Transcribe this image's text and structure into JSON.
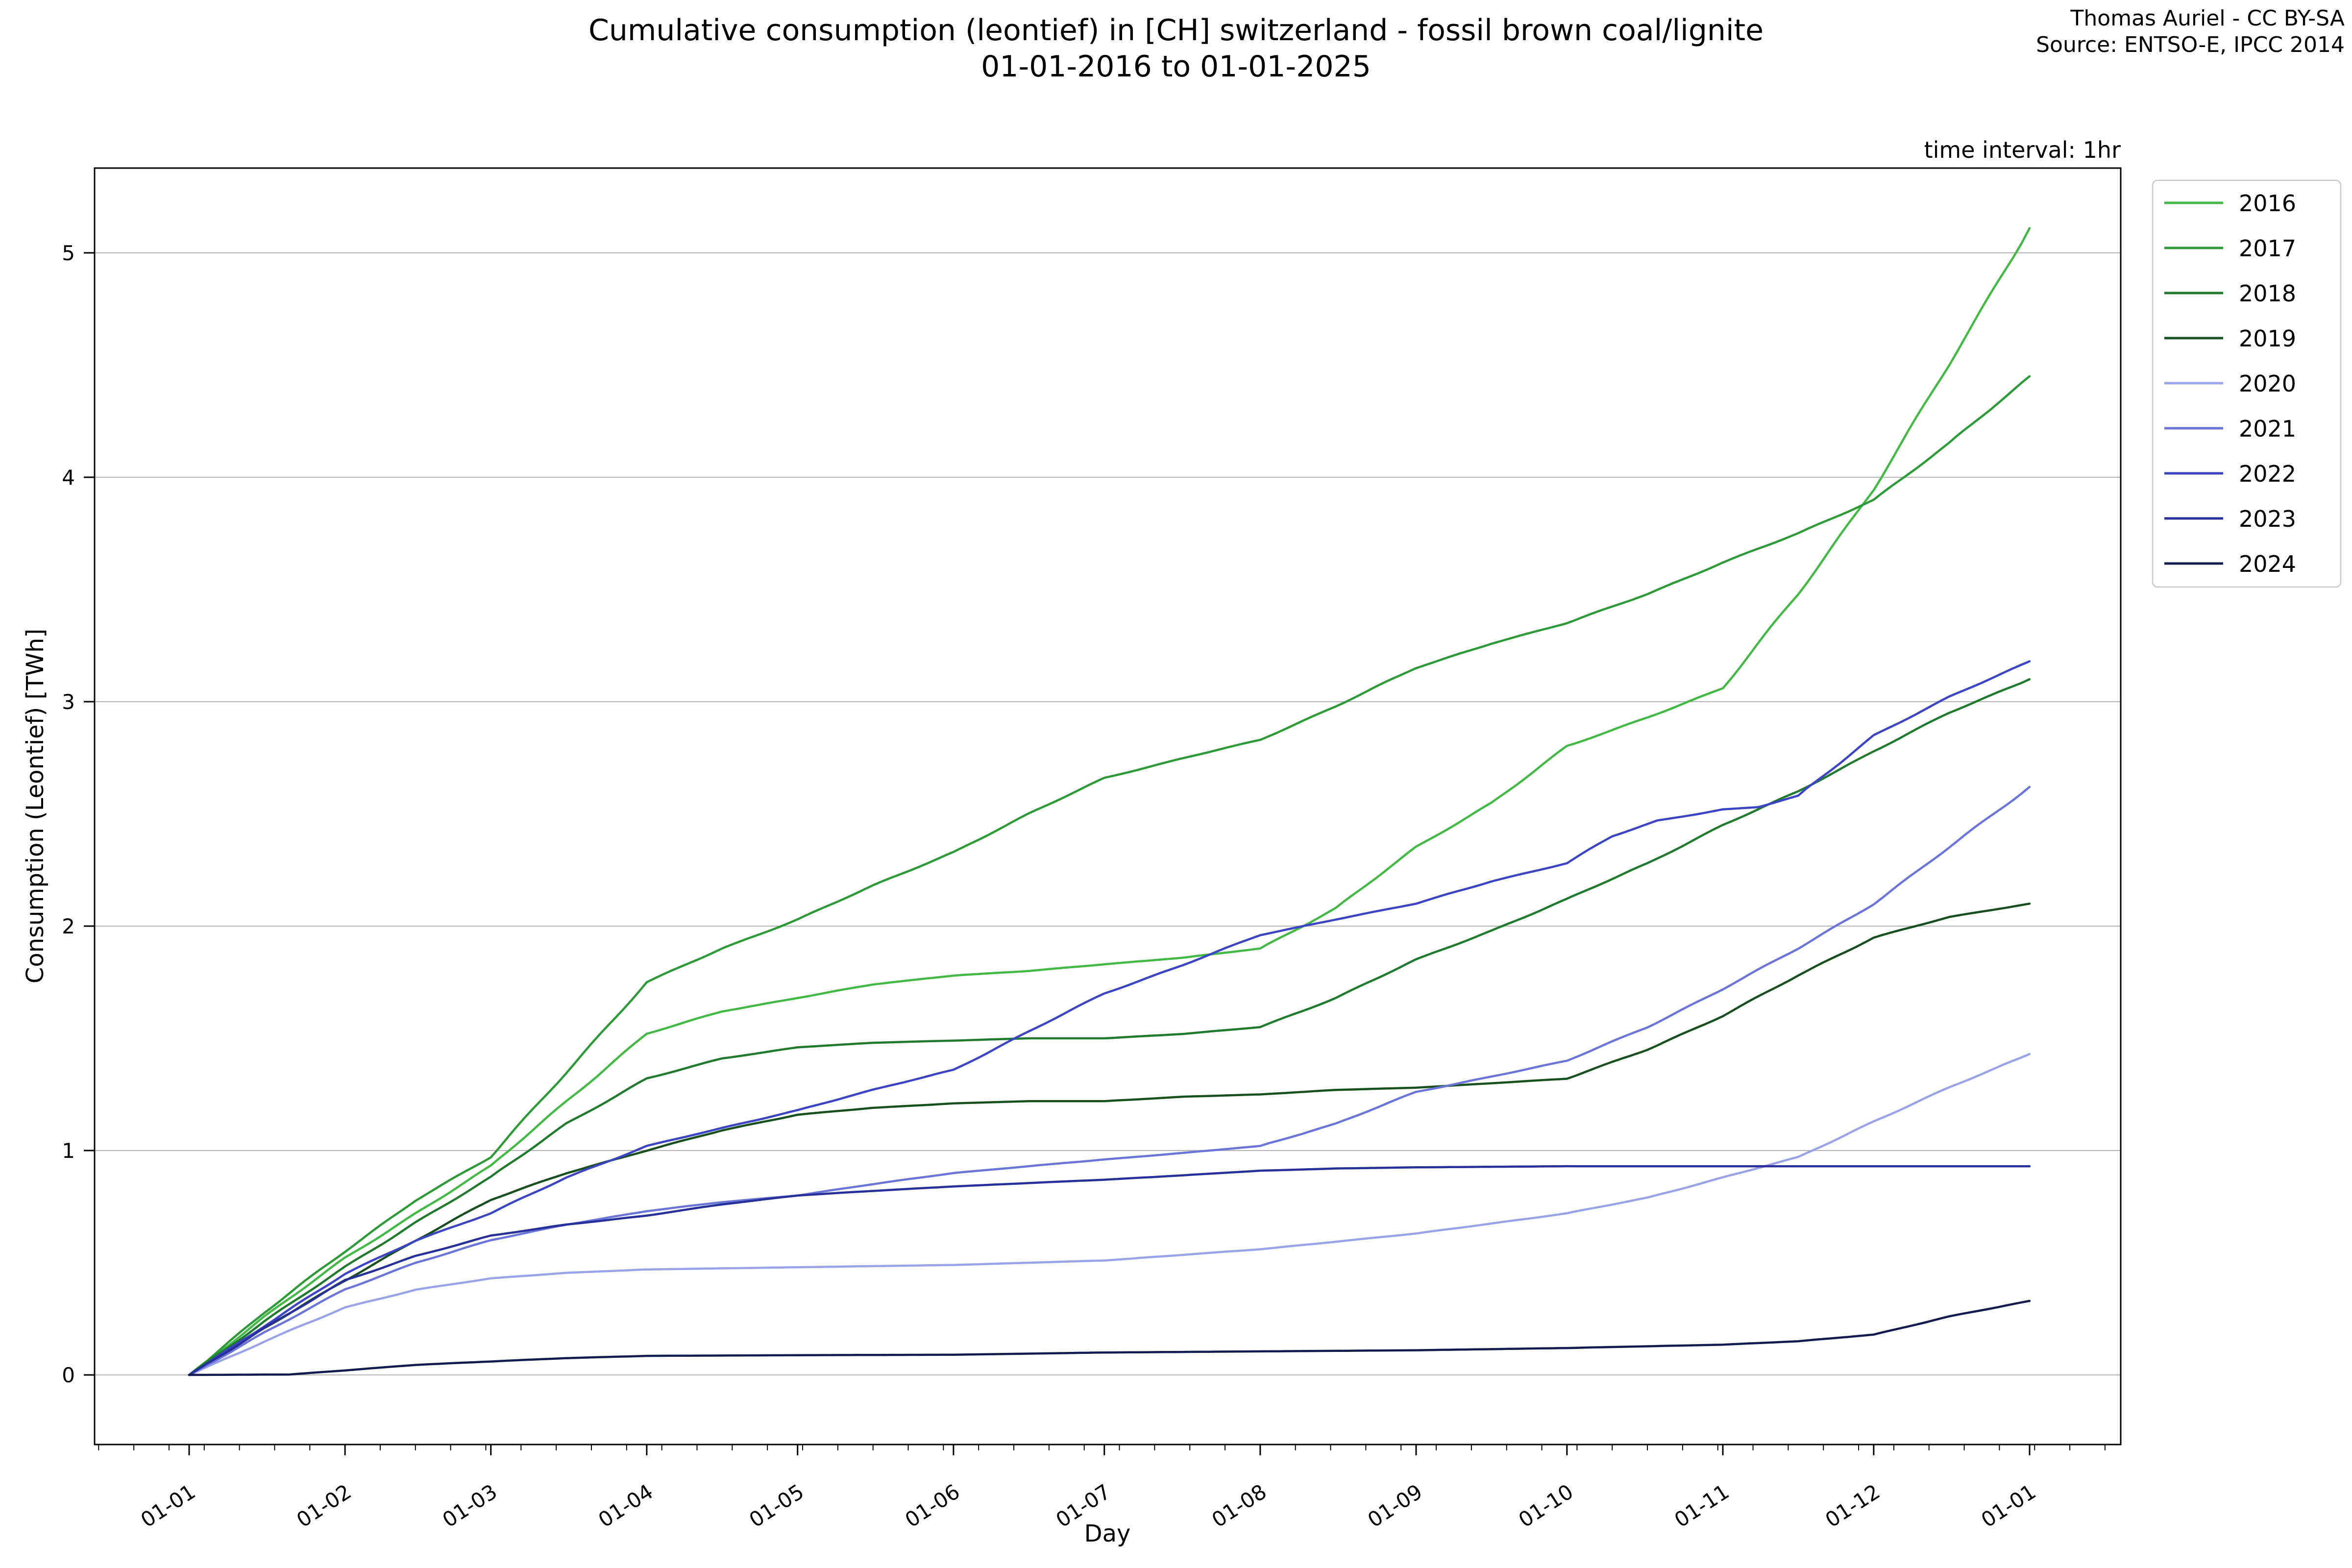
{
  "header": {
    "title_line1": "Cumulative consumption (leontief) in [CH] switzerland - fossil brown coal/lignite",
    "title_line2": "01-01-2016 to 01-01-2025",
    "attribution_line1": "Thomas Auriel - CC BY-SA",
    "attribution_line2": "Source: ENTSO-E, IPCC 2014",
    "note": "time interval: 1hr"
  },
  "chart_data": {
    "type": "line",
    "title": "Cumulative consumption (leontief) in [CH] switzerland - fossil brown coal/lignite 01-01-2016 to 01-01-2025",
    "xlabel": "Day",
    "ylabel": "Consumption (Leontief) [TWh]",
    "grid": "horizontal-only",
    "legend_position": "outside-upper-right",
    "x_axis": {
      "unit": "day of year (dd-mm labels)",
      "tick_labels": [
        "01-01",
        "01-02",
        "01-03",
        "01-04",
        "01-05",
        "01-06",
        "01-07",
        "01-08",
        "01-09",
        "01-10",
        "01-11",
        "01-12",
        "01-01"
      ],
      "tick_days": [
        0,
        31,
        60,
        91,
        121,
        152,
        182,
        213,
        244,
        274,
        305,
        335,
        366
      ],
      "minor_tick_interval_days": 7,
      "tick_label_rotation_deg": -33
    },
    "y_axis": {
      "tick_labels": [
        "0",
        "1",
        "2",
        "3",
        "4",
        "5"
      ],
      "tick_values": [
        0,
        1,
        2,
        3,
        4,
        5
      ],
      "ylim": [
        -0.31,
        5.38
      ]
    },
    "series": [
      {
        "name": "2016",
        "color": "#41b944",
        "end_value": 5.11,
        "points": [
          [
            0,
            0
          ],
          [
            15,
            0.26
          ],
          [
            31,
            0.52
          ],
          [
            45,
            0.72
          ],
          [
            60,
            0.93
          ],
          [
            75,
            1.22
          ],
          [
            91,
            1.52
          ],
          [
            106,
            1.62
          ],
          [
            121,
            1.68
          ],
          [
            136,
            1.74
          ],
          [
            152,
            1.78
          ],
          [
            167,
            1.8
          ],
          [
            182,
            1.83
          ],
          [
            198,
            1.86
          ],
          [
            213,
            1.9
          ],
          [
            228,
            2.08
          ],
          [
            244,
            2.35
          ],
          [
            259,
            2.55
          ],
          [
            274,
            2.8
          ],
          [
            290,
            2.93
          ],
          [
            305,
            3.06
          ],
          [
            320,
            3.48
          ],
          [
            335,
            3.95
          ],
          [
            350,
            4.5
          ],
          [
            366,
            5.11
          ]
        ]
      },
      {
        "name": "2017",
        "color": "#2c9a37",
        "end_value": 4.45,
        "points": [
          [
            0,
            0
          ],
          [
            15,
            0.28
          ],
          [
            31,
            0.55
          ],
          [
            45,
            0.78
          ],
          [
            60,
            0.97
          ],
          [
            75,
            1.35
          ],
          [
            91,
            1.75
          ],
          [
            106,
            1.9
          ],
          [
            121,
            2.03
          ],
          [
            136,
            2.18
          ],
          [
            152,
            2.33
          ],
          [
            167,
            2.5
          ],
          [
            182,
            2.66
          ],
          [
            198,
            2.75
          ],
          [
            213,
            2.83
          ],
          [
            228,
            2.98
          ],
          [
            244,
            3.15
          ],
          [
            259,
            3.26
          ],
          [
            274,
            3.35
          ],
          [
            290,
            3.48
          ],
          [
            305,
            3.62
          ],
          [
            320,
            3.75
          ],
          [
            335,
            3.9
          ],
          [
            350,
            4.15
          ],
          [
            366,
            4.45
          ]
        ]
      },
      {
        "name": "2018",
        "color": "#1f7a2d",
        "end_value": 3.1,
        "points": [
          [
            0,
            0
          ],
          [
            15,
            0.24
          ],
          [
            31,
            0.48
          ],
          [
            45,
            0.68
          ],
          [
            60,
            0.88
          ],
          [
            75,
            1.12
          ],
          [
            91,
            1.32
          ],
          [
            106,
            1.41
          ],
          [
            121,
            1.46
          ],
          [
            136,
            1.48
          ],
          [
            152,
            1.49
          ],
          [
            167,
            1.5
          ],
          [
            182,
            1.5
          ],
          [
            198,
            1.52
          ],
          [
            213,
            1.55
          ],
          [
            228,
            1.68
          ],
          [
            244,
            1.85
          ],
          [
            259,
            1.98
          ],
          [
            274,
            2.12
          ],
          [
            290,
            2.28
          ],
          [
            305,
            2.45
          ],
          [
            320,
            2.6
          ],
          [
            335,
            2.78
          ],
          [
            350,
            2.95
          ],
          [
            366,
            3.1
          ]
        ]
      },
      {
        "name": "2019",
        "color": "#184f1f",
        "end_value": 2.1,
        "points": [
          [
            0,
            0
          ],
          [
            15,
            0.21
          ],
          [
            31,
            0.42
          ],
          [
            45,
            0.6
          ],
          [
            60,
            0.78
          ],
          [
            75,
            0.9
          ],
          [
            91,
            1.0
          ],
          [
            106,
            1.09
          ],
          [
            121,
            1.16
          ],
          [
            136,
            1.19
          ],
          [
            152,
            1.21
          ],
          [
            167,
            1.22
          ],
          [
            182,
            1.22
          ],
          [
            198,
            1.24
          ],
          [
            213,
            1.25
          ],
          [
            228,
            1.27
          ],
          [
            244,
            1.28
          ],
          [
            259,
            1.3
          ],
          [
            274,
            1.32
          ],
          [
            290,
            1.45
          ],
          [
            305,
            1.6
          ],
          [
            320,
            1.78
          ],
          [
            335,
            1.95
          ],
          [
            350,
            2.04
          ],
          [
            366,
            2.1
          ]
        ]
      },
      {
        "name": "2020",
        "color": "#9aa3e8",
        "end_value": 1.43,
        "points": [
          [
            0,
            0
          ],
          [
            15,
            0.15
          ],
          [
            31,
            0.3
          ],
          [
            45,
            0.38
          ],
          [
            60,
            0.43
          ],
          [
            75,
            0.455
          ],
          [
            91,
            0.47
          ],
          [
            121,
            0.48
          ],
          [
            152,
            0.49
          ],
          [
            182,
            0.51
          ],
          [
            213,
            0.56
          ],
          [
            244,
            0.63
          ],
          [
            274,
            0.72
          ],
          [
            290,
            0.79
          ],
          [
            305,
            0.88
          ],
          [
            320,
            0.97
          ],
          [
            335,
            1.13
          ],
          [
            350,
            1.28
          ],
          [
            366,
            1.43
          ]
        ]
      },
      {
        "name": "2021",
        "color": "#6b74d8",
        "end_value": 2.62,
        "points": [
          [
            0,
            0
          ],
          [
            15,
            0.19
          ],
          [
            31,
            0.38
          ],
          [
            45,
            0.5
          ],
          [
            60,
            0.6
          ],
          [
            75,
            0.67
          ],
          [
            91,
            0.73
          ],
          [
            106,
            0.77
          ],
          [
            121,
            0.8
          ],
          [
            136,
            0.85
          ],
          [
            152,
            0.9
          ],
          [
            167,
            0.93
          ],
          [
            182,
            0.96
          ],
          [
            198,
            0.99
          ],
          [
            213,
            1.02
          ],
          [
            228,
            1.12
          ],
          [
            244,
            1.26
          ],
          [
            259,
            1.33
          ],
          [
            274,
            1.4
          ],
          [
            290,
            1.55
          ],
          [
            305,
            1.72
          ],
          [
            320,
            1.9
          ],
          [
            335,
            2.1
          ],
          [
            350,
            2.35
          ],
          [
            366,
            2.62
          ]
        ]
      },
      {
        "name": "2022",
        "color": "#3a44c4",
        "end_value": 3.18,
        "points": [
          [
            0,
            0
          ],
          [
            15,
            0.22
          ],
          [
            31,
            0.45
          ],
          [
            45,
            0.6
          ],
          [
            60,
            0.72
          ],
          [
            75,
            0.88
          ],
          [
            91,
            1.02
          ],
          [
            106,
            1.1
          ],
          [
            121,
            1.18
          ],
          [
            136,
            1.27
          ],
          [
            152,
            1.36
          ],
          [
            167,
            1.53
          ],
          [
            182,
            1.7
          ],
          [
            198,
            1.83
          ],
          [
            213,
            1.96
          ],
          [
            228,
            2.03
          ],
          [
            244,
            2.1
          ],
          [
            259,
            2.2
          ],
          [
            274,
            2.28
          ],
          [
            283,
            2.4
          ],
          [
            292,
            2.47
          ],
          [
            300,
            2.5
          ],
          [
            305,
            2.52
          ],
          [
            312,
            2.53
          ],
          [
            320,
            2.58
          ],
          [
            335,
            2.85
          ],
          [
            350,
            3.02
          ],
          [
            366,
            3.18
          ]
        ]
      },
      {
        "name": "2023",
        "color": "#262f9a",
        "end_value": 0.93,
        "points": [
          [
            0,
            0
          ],
          [
            15,
            0.21
          ],
          [
            31,
            0.42
          ],
          [
            45,
            0.53
          ],
          [
            60,
            0.62
          ],
          [
            75,
            0.67
          ],
          [
            91,
            0.71
          ],
          [
            106,
            0.76
          ],
          [
            121,
            0.8
          ],
          [
            136,
            0.82
          ],
          [
            152,
            0.84
          ],
          [
            167,
            0.855
          ],
          [
            182,
            0.87
          ],
          [
            198,
            0.89
          ],
          [
            213,
            0.91
          ],
          [
            228,
            0.92
          ],
          [
            244,
            0.925
          ],
          [
            274,
            0.93
          ],
          [
            305,
            0.93
          ],
          [
            335,
            0.93
          ],
          [
            366,
            0.93
          ]
        ]
      },
      {
        "name": "2024",
        "color": "#131b4f",
        "end_value": 0.33,
        "points": [
          [
            0,
            0
          ],
          [
            20,
            0.002
          ],
          [
            31,
            0.02
          ],
          [
            45,
            0.045
          ],
          [
            60,
            0.06
          ],
          [
            75,
            0.075
          ],
          [
            91,
            0.085
          ],
          [
            121,
            0.088
          ],
          [
            152,
            0.09
          ],
          [
            182,
            0.1
          ],
          [
            213,
            0.105
          ],
          [
            244,
            0.11
          ],
          [
            274,
            0.12
          ],
          [
            305,
            0.135
          ],
          [
            320,
            0.15
          ],
          [
            335,
            0.18
          ],
          [
            350,
            0.26
          ],
          [
            366,
            0.33
          ]
        ]
      }
    ]
  }
}
